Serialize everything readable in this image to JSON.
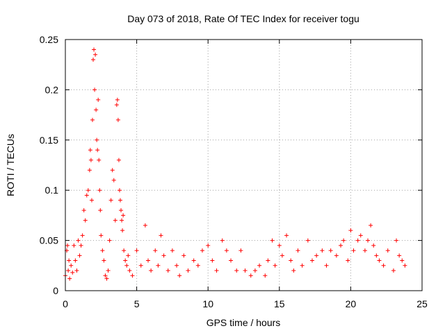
{
  "chart_data": {
    "type": "scatter",
    "title": "Day 073 of 2018, Rate Of TEC Index for receiver togu",
    "xlabel": "GPS time / hours",
    "ylabel": "ROTI / TECUs",
    "xlim": [
      0,
      25
    ],
    "ylim": [
      0,
      0.25
    ],
    "x_ticks": [
      0,
      5,
      10,
      15,
      20,
      25
    ],
    "y_ticks": [
      0,
      0.05,
      0.1,
      0.15,
      0.2,
      0.25
    ],
    "x_tick_labels": [
      "0",
      "5",
      "10",
      "15",
      "20",
      "25"
    ],
    "y_tick_labels": [
      "0",
      "0.05",
      "0.1",
      "0.15",
      "0.2",
      "0.25"
    ],
    "grid": true,
    "marker": "+",
    "series": [
      {
        "name": "ROTI",
        "color": "#ff0000",
        "x": [
          0.0,
          0.1,
          0.15,
          0.2,
          0.25,
          0.3,
          0.4,
          0.5,
          0.6,
          0.7,
          0.8,
          0.9,
          1.0,
          1.1,
          1.2,
          1.3,
          1.4,
          1.5,
          1.6,
          1.7,
          1.75,
          1.8,
          1.85,
          1.9,
          1.95,
          2.0,
          2.05,
          2.1,
          2.15,
          2.2,
          2.25,
          2.3,
          2.35,
          2.4,
          2.45,
          2.5,
          2.6,
          2.7,
          2.8,
          2.9,
          3.0,
          3.1,
          3.2,
          3.3,
          3.4,
          3.5,
          3.6,
          3.65,
          3.7,
          3.75,
          3.8,
          3.85,
          3.9,
          3.95,
          4.0,
          4.05,
          4.1,
          4.2,
          4.3,
          4.4,
          4.5,
          4.7,
          5.0,
          5.3,
          5.6,
          5.8,
          6.0,
          6.3,
          6.5,
          6.7,
          6.9,
          7.2,
          7.5,
          7.8,
          8.0,
          8.3,
          8.6,
          9.0,
          9.3,
          9.6,
          10.0,
          10.3,
          10.6,
          11.0,
          11.3,
          11.6,
          12.0,
          12.3,
          12.6,
          13.0,
          13.3,
          13.6,
          14.0,
          14.2,
          14.5,
          14.7,
          15.0,
          15.2,
          15.5,
          15.8,
          16.0,
          16.3,
          16.6,
          17.0,
          17.3,
          17.6,
          18.0,
          18.3,
          18.6,
          19.0,
          19.3,
          19.5,
          19.8,
          20.0,
          20.2,
          20.5,
          20.7,
          21.0,
          21.2,
          21.4,
          21.6,
          21.8,
          22.0,
          22.3,
          22.6,
          23.0,
          23.2,
          23.4,
          23.6,
          23.8
        ],
        "y": [
          0.015,
          0.04,
          0.045,
          0.02,
          0.03,
          0.012,
          0.025,
          0.018,
          0.045,
          0.03,
          0.02,
          0.05,
          0.035,
          0.045,
          0.055,
          0.08,
          0.07,
          0.095,
          0.1,
          0.12,
          0.14,
          0.13,
          0.09,
          0.17,
          0.23,
          0.24,
          0.2,
          0.235,
          0.18,
          0.15,
          0.14,
          0.19,
          0.13,
          0.1,
          0.08,
          0.055,
          0.04,
          0.03,
          0.015,
          0.012,
          0.02,
          0.05,
          0.09,
          0.12,
          0.11,
          0.07,
          0.185,
          0.19,
          0.17,
          0.13,
          0.1,
          0.09,
          0.08,
          0.07,
          0.06,
          0.075,
          0.04,
          0.03,
          0.025,
          0.035,
          0.02,
          0.015,
          0.04,
          0.025,
          0.065,
          0.03,
          0.02,
          0.04,
          0.025,
          0.055,
          0.035,
          0.02,
          0.04,
          0.025,
          0.015,
          0.035,
          0.02,
          0.03,
          0.025,
          0.04,
          0.045,
          0.03,
          0.02,
          0.05,
          0.04,
          0.03,
          0.02,
          0.04,
          0.02,
          0.015,
          0.02,
          0.025,
          0.015,
          0.03,
          0.05,
          0.025,
          0.045,
          0.035,
          0.055,
          0.03,
          0.02,
          0.04,
          0.025,
          0.05,
          0.03,
          0.035,
          0.04,
          0.025,
          0.04,
          0.035,
          0.045,
          0.05,
          0.03,
          0.06,
          0.04,
          0.05,
          0.055,
          0.04,
          0.05,
          0.065,
          0.045,
          0.035,
          0.03,
          0.025,
          0.04,
          0.02,
          0.05,
          0.035,
          0.03,
          0.025
        ]
      }
    ]
  }
}
